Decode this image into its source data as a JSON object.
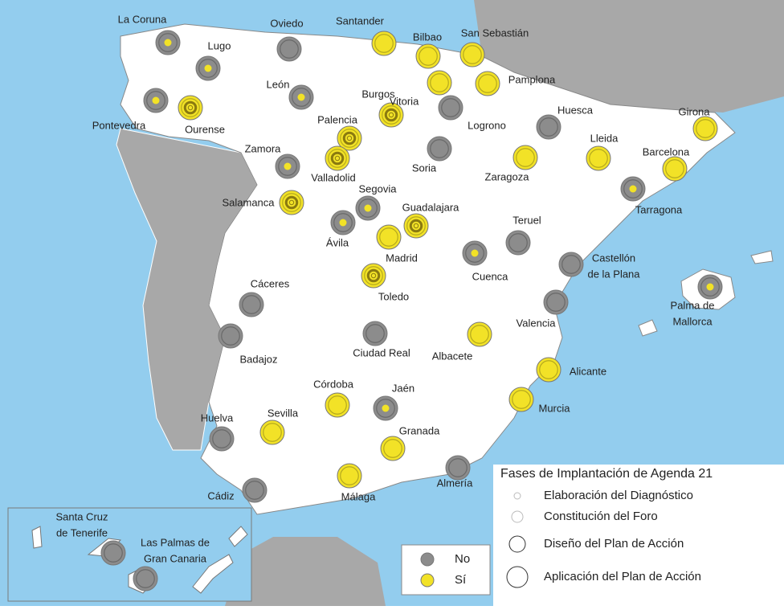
{
  "map": {
    "cities": [
      {
        "name": [
          "La Coruna"
        ],
        "status": 0,
        "phase": 2
      },
      {
        "name": [
          "Lugo"
        ],
        "status": 0,
        "phase": 2
      },
      {
        "name": [
          "Oviedo"
        ],
        "status": 0,
        "phase": 4
      },
      {
        "name": [
          "Santander"
        ],
        "status": 1,
        "phase": 4
      },
      {
        "name": [
          "Bilbao"
        ],
        "status": 1,
        "phase": 4
      },
      {
        "name": [
          "San Sebastián"
        ],
        "status": 1,
        "phase": 4
      },
      {
        "name": [
          "Pontevedra"
        ],
        "status": 0,
        "phase": 2
      },
      {
        "name": [
          "Ourense"
        ],
        "status": 1,
        "phase": 3
      },
      {
        "name": [
          "León"
        ],
        "status": 0,
        "phase": 2
      },
      {
        "name": [
          "Burgos"
        ],
        "status": 1,
        "phase": 3
      },
      {
        "name": [
          "Vitoria"
        ],
        "status": 1,
        "phase": 4
      },
      {
        "name": [
          "Pamplona"
        ],
        "status": 1,
        "phase": 4
      },
      {
        "name": [
          "Logrono"
        ],
        "status": 0,
        "phase": 4
      },
      {
        "name": [
          "Huesca"
        ],
        "status": 0,
        "phase": 4
      },
      {
        "name": [
          "Girona"
        ],
        "status": 1,
        "phase": 4
      },
      {
        "name": [
          "Palencia"
        ],
        "status": 1,
        "phase": 3
      },
      {
        "name": [
          "Valladolid"
        ],
        "status": 1,
        "phase": 3
      },
      {
        "name": [
          "Zamora"
        ],
        "status": 0,
        "phase": 2
      },
      {
        "name": [
          "Soria"
        ],
        "status": 0,
        "phase": 4
      },
      {
        "name": [
          "Lleida"
        ],
        "status": 1,
        "phase": 4
      },
      {
        "name": [
          "Zaragoza"
        ],
        "status": 1,
        "phase": 4
      },
      {
        "name": [
          "Barcelona"
        ],
        "status": 1,
        "phase": 4
      },
      {
        "name": [
          "Tarragona"
        ],
        "status": 0,
        "phase": 2
      },
      {
        "name": [
          "Segovia"
        ],
        "status": 0,
        "phase": 2
      },
      {
        "name": [
          "Salamanca"
        ],
        "status": 1,
        "phase": 3
      },
      {
        "name": [
          "Guadalajara"
        ],
        "status": 1,
        "phase": 3
      },
      {
        "name": [
          "Ávila"
        ],
        "status": 0,
        "phase": 2
      },
      {
        "name": [
          "Madrid"
        ],
        "status": 1,
        "phase": 4
      },
      {
        "name": [
          "Teruel"
        ],
        "status": 0,
        "phase": 4
      },
      {
        "name": [
          "Cuenca"
        ],
        "status": 0,
        "phase": 2
      },
      {
        "name": [
          "Castellón",
          "de la Plana"
        ],
        "status": 0,
        "phase": 4
      },
      {
        "name": [
          "Palma de",
          "Mallorca"
        ],
        "status": 0,
        "phase": 2
      },
      {
        "name": [
          "Toledo"
        ],
        "status": 1,
        "phase": 3
      },
      {
        "name": [
          "Cáceres"
        ],
        "status": 0,
        "phase": 4
      },
      {
        "name": [
          "Valencia"
        ],
        "status": 0,
        "phase": 4
      },
      {
        "name": [
          "Badajoz"
        ],
        "status": 0,
        "phase": 4
      },
      {
        "name": [
          "Ciudad Real"
        ],
        "status": 0,
        "phase": 4
      },
      {
        "name": [
          "Albacete"
        ],
        "status": 1,
        "phase": 4
      },
      {
        "name": [
          "Alicante"
        ],
        "status": 1,
        "phase": 4
      },
      {
        "name": [
          "Córdoba"
        ],
        "status": 1,
        "phase": 4
      },
      {
        "name": [
          "Jaén"
        ],
        "status": 0,
        "phase": 2
      },
      {
        "name": [
          "Murcia"
        ],
        "status": 1,
        "phase": 4
      },
      {
        "name": [
          "Sevilla"
        ],
        "status": 1,
        "phase": 4
      },
      {
        "name": [
          "Huelva"
        ],
        "status": 0,
        "phase": 4
      },
      {
        "name": [
          "Granada"
        ],
        "status": 1,
        "phase": 4
      },
      {
        "name": [
          "Almería"
        ],
        "status": 0,
        "phase": 4
      },
      {
        "name": [
          "Málaga"
        ],
        "status": 1,
        "phase": 4
      },
      {
        "name": [
          "Cádiz"
        ],
        "status": 0,
        "phase": 4
      },
      {
        "name": [
          "Santa Cruz",
          "de Tenerife"
        ],
        "status": 0,
        "phase": 4
      },
      {
        "name": [
          "Las Palmas de",
          "Gran Canaria"
        ],
        "status": 0,
        "phase": 4
      }
    ],
    "status_legend": {
      "items": [
        "No",
        "Sí"
      ],
      "colors": [
        "#8c8c8c",
        "#f2e227"
      ]
    },
    "phase_legend": {
      "title": "Fases de Implantación de Agenda 21",
      "items": [
        "Elaboración del Diagnóstico",
        "Constitución del Foro",
        "Diseño del Plan de Acción",
        "Aplicación del Plan de Acción"
      ]
    }
  }
}
